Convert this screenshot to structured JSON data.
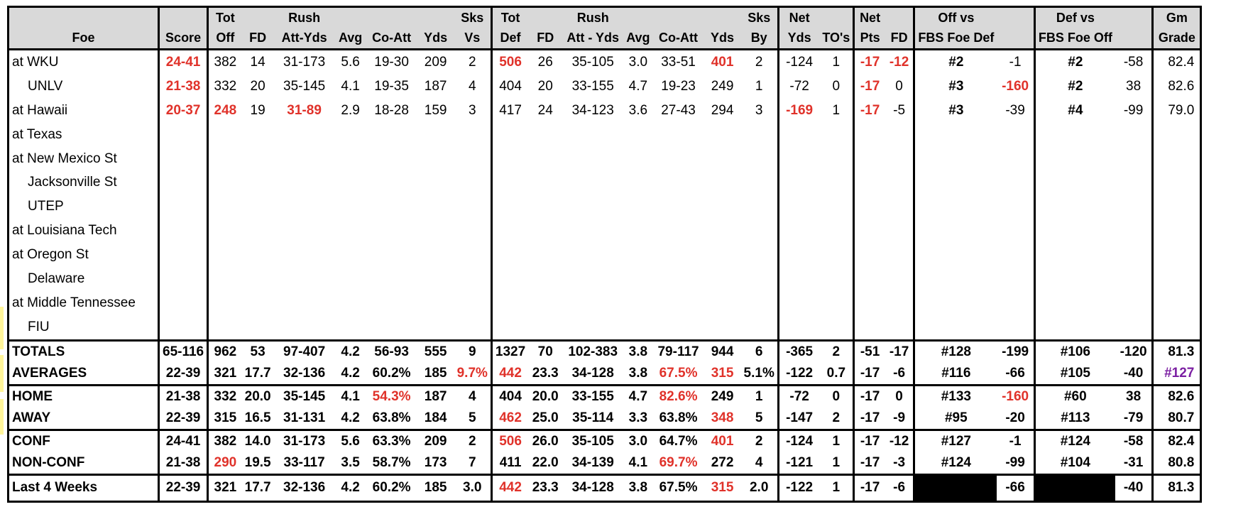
{
  "header_row1": [
    "",
    "",
    "Tot",
    "",
    "Rush",
    "",
    "",
    "",
    "Sks",
    "Tot",
    "",
    "Rush",
    "",
    "",
    "",
    "Sks",
    "Net",
    "",
    "Net",
    "",
    "Off vs",
    "",
    "Def vs",
    "",
    "Gm"
  ],
  "header_row2": [
    "Foe",
    "Score",
    "Off",
    "FD",
    "Att-Yds",
    "Avg",
    "Co-Att",
    "Yds",
    "Vs",
    "Def",
    "FD",
    "Att - Yds",
    "Avg",
    "Co-Att",
    "Yds",
    "By",
    "Yds",
    "TO's",
    "Pts",
    "FD",
    "FBS Foe Def",
    "",
    "FBS Foe Off",
    "",
    "Grade"
  ],
  "games": [
    {
      "foe": "at WKU",
      "indent": false,
      "cells": [
        "24-41",
        "382",
        "14",
        "31-173",
        "5.6",
        "19-30",
        "209",
        "2",
        "506",
        "26",
        "35-105",
        "3.0",
        "33-51",
        "401",
        "2",
        "-124",
        "1",
        "-17",
        "-12",
        "#2",
        "-1",
        "#2",
        "-58",
        "82.4"
      ],
      "red": [
        0,
        8,
        13,
        17,
        18
      ],
      "bold": [
        19,
        21
      ]
    },
    {
      "foe": "UNLV",
      "indent": true,
      "cells": [
        "21-38",
        "332",
        "20",
        "35-145",
        "4.1",
        "19-35",
        "187",
        "4",
        "404",
        "20",
        "33-155",
        "4.7",
        "19-23",
        "249",
        "1",
        "-72",
        "0",
        "-17",
        "0",
        "#3",
        "-160",
        "#2",
        "38",
        "82.6"
      ],
      "red": [
        0,
        17,
        20
      ],
      "bold": [
        19,
        21
      ]
    },
    {
      "foe": "at Hawaii",
      "indent": false,
      "cells": [
        "20-37",
        "248",
        "19",
        "31-89",
        "2.9",
        "18-28",
        "159",
        "3",
        "417",
        "24",
        "34-123",
        "3.6",
        "27-43",
        "294",
        "3",
        "-169",
        "1",
        "-17",
        "-5",
        "#3",
        "-39",
        "#4",
        "-99",
        "79.0"
      ],
      "red": [
        0,
        1,
        3,
        15,
        17
      ],
      "bold": [
        19,
        21
      ]
    },
    {
      "foe": "at Texas",
      "indent": false,
      "cells": [],
      "red": [],
      "bold": []
    },
    {
      "foe": "at New Mexico St",
      "indent": false,
      "cells": [],
      "red": [],
      "bold": []
    },
    {
      "foe": "Jacksonville St",
      "indent": true,
      "cells": [],
      "red": [],
      "bold": []
    },
    {
      "foe": "UTEP",
      "indent": true,
      "cells": [],
      "red": [],
      "bold": []
    },
    {
      "foe": "at Louisiana Tech",
      "indent": false,
      "cells": [],
      "red": [],
      "bold": []
    },
    {
      "foe": "at Oregon St",
      "indent": false,
      "cells": [],
      "red": [],
      "bold": []
    },
    {
      "foe": "Delaware",
      "indent": true,
      "cells": [],
      "red": [],
      "bold": []
    },
    {
      "foe": "at Middle Tennessee",
      "indent": false,
      "cells": [],
      "red": [],
      "bold": []
    },
    {
      "foe": "FIU",
      "indent": true,
      "cells": [],
      "red": [],
      "bold": []
    }
  ],
  "summary": [
    {
      "label": "TOTALS",
      "cells": [
        "65-116",
        "962",
        "53",
        "97-407",
        "4.2",
        "56-93",
        "555",
        "9",
        "1327",
        "70",
        "102-383",
        "3.8",
        "79-117",
        "944",
        "6",
        "-365",
        "2",
        "-51",
        "-17",
        "#128",
        "-199",
        "#106",
        "-120",
        "81.3"
      ],
      "red": [],
      "purple": [],
      "black": []
    },
    {
      "label": "AVERAGES",
      "cells": [
        "22-39",
        "321",
        "17.7",
        "32-136",
        "4.2",
        "60.2%",
        "185",
        "9.7%",
        "442",
        "23.3",
        "34-128",
        "3.8",
        "67.5%",
        "315",
        "5.1%",
        "-122",
        "0.7",
        "-17",
        "-6",
        "#116",
        "-66",
        "#105",
        "-40",
        "#127"
      ],
      "red": [
        7,
        8,
        12,
        13
      ],
      "purple": [
        23
      ],
      "black": []
    },
    {
      "label": "HOME",
      "cells": [
        "21-38",
        "332",
        "20.0",
        "35-145",
        "4.1",
        "54.3%",
        "187",
        "4",
        "404",
        "20.0",
        "33-155",
        "4.7",
        "82.6%",
        "249",
        "1",
        "-72",
        "0",
        "-17",
        "0",
        "#133",
        "-160",
        "#60",
        "38",
        "82.6"
      ],
      "red": [
        5,
        12,
        20
      ],
      "purple": [],
      "black": []
    },
    {
      "label": "AWAY",
      "cells": [
        "22-39",
        "315",
        "16.5",
        "31-131",
        "4.2",
        "63.8%",
        "184",
        "5",
        "462",
        "25.0",
        "35-114",
        "3.3",
        "63.8%",
        "348",
        "5",
        "-147",
        "2",
        "-17",
        "-9",
        "#95",
        "-20",
        "#113",
        "-79",
        "80.7"
      ],
      "red": [
        8,
        13
      ],
      "purple": [],
      "black": []
    },
    {
      "label": "CONF",
      "cells": [
        "24-41",
        "382",
        "14.0",
        "31-173",
        "5.6",
        "63.3%",
        "209",
        "2",
        "506",
        "26.0",
        "35-105",
        "3.0",
        "64.7%",
        "401",
        "2",
        "-124",
        "1",
        "-17",
        "-12",
        "#127",
        "-1",
        "#124",
        "-58",
        "82.4"
      ],
      "red": [
        8,
        13
      ],
      "purple": [],
      "black": []
    },
    {
      "label": "NON-CONF",
      "cells": [
        "21-38",
        "290",
        "19.5",
        "33-117",
        "3.5",
        "58.7%",
        "173",
        "7",
        "411",
        "22.0",
        "34-139",
        "4.1",
        "69.7%",
        "272",
        "4",
        "-121",
        "1",
        "-17",
        "-3",
        "#124",
        "-99",
        "#104",
        "-31",
        "80.8"
      ],
      "red": [
        1,
        12
      ],
      "purple": [],
      "black": []
    },
    {
      "label": "Last 4 Weeks",
      "cells": [
        "22-39",
        "321",
        "17.7",
        "32-136",
        "4.2",
        "60.2%",
        "185",
        "3.0",
        "442",
        "23.3",
        "34-128",
        "3.8",
        "67.5%",
        "315",
        "2.0",
        "-122",
        "1",
        "-17",
        "-6",
        "",
        "-66",
        "",
        "-40",
        "81.3"
      ],
      "red": [
        8,
        13
      ],
      "purple": [],
      "black": [
        19,
        21
      ]
    }
  ]
}
